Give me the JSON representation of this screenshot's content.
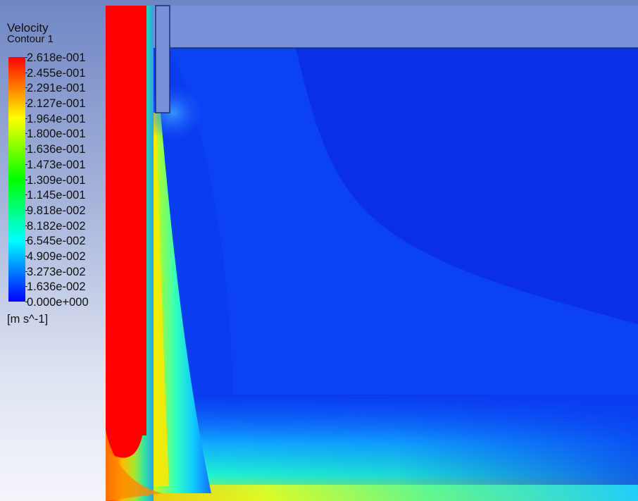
{
  "legend": {
    "title": "Velocity",
    "subtitle": "Contour 1",
    "units": "[m s^-1]",
    "ticks": [
      "2.618e-001",
      "2.455e-001",
      "2.291e-001",
      "2.127e-001",
      "1.964e-001",
      "1.800e-001",
      "1.636e-001",
      "1.473e-001",
      "1.309e-001",
      "1.145e-001",
      "9.818e-002",
      "8.182e-002",
      "6.545e-002",
      "4.909e-002",
      "3.273e-002",
      "1.636e-002",
      "0.000e+000"
    ],
    "colors": [
      "#ff0000",
      "#ff7f00",
      "#ffff00",
      "#7fff00",
      "#00ff00",
      "#00ff7f",
      "#00ffff",
      "#007fff",
      "#0000ff"
    ]
  },
  "plot": {
    "background_color": "#0a3cf0",
    "wall_color": "#7790d8"
  }
}
